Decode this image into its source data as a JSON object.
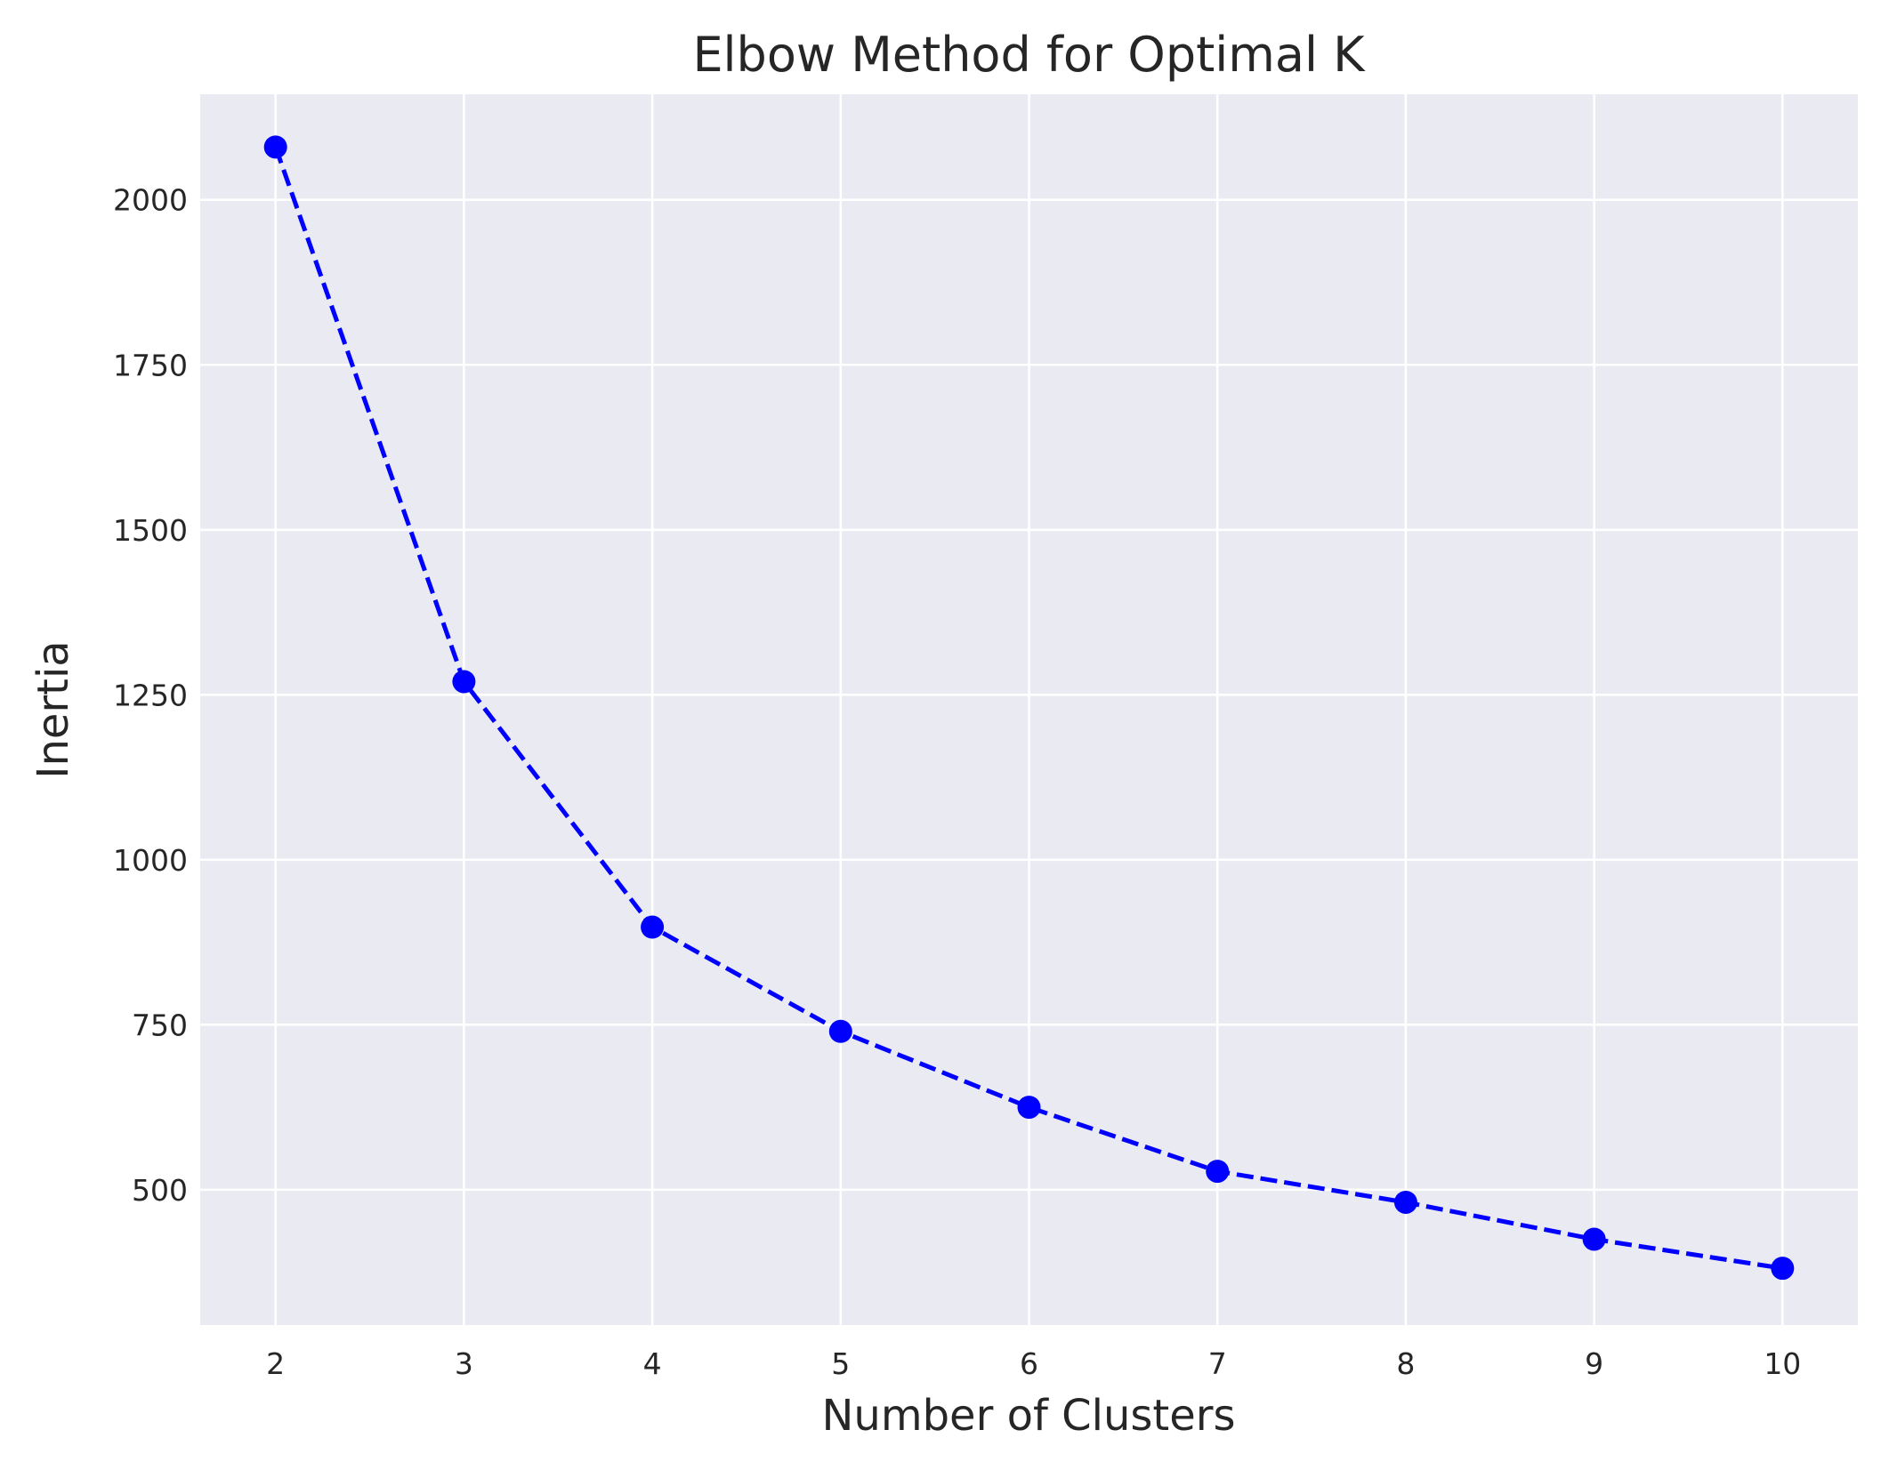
{
  "chart_data": {
    "type": "line",
    "title": "Elbow Method for Optimal K",
    "xlabel": "Number of Clusters",
    "ylabel": "Inertia",
    "x": [
      2,
      3,
      4,
      5,
      6,
      7,
      8,
      9,
      10
    ],
    "series": [
      {
        "values": [
          2080,
          1270,
          898,
          740,
          625,
          528,
          481,
          425,
          381
        ],
        "color": "#0000ff",
        "line_style": "dashed",
        "marker": "circle"
      }
    ],
    "xticks": [
      "2",
      "3",
      "4",
      "5",
      "6",
      "7",
      "8",
      "9",
      "10"
    ],
    "yticks": [
      "500",
      "750",
      "1000",
      "1250",
      "1500",
      "1750",
      "2000"
    ],
    "ytick_values": [
      500,
      750,
      1000,
      1250,
      1500,
      1750,
      2000
    ],
    "xlim": [
      1.6,
      10.4
    ],
    "ylim": [
      295,
      2160
    ],
    "grid": true,
    "colors": {
      "plot_background": "#eaeaf2",
      "grid": "#ffffff",
      "text": "#262626"
    }
  }
}
